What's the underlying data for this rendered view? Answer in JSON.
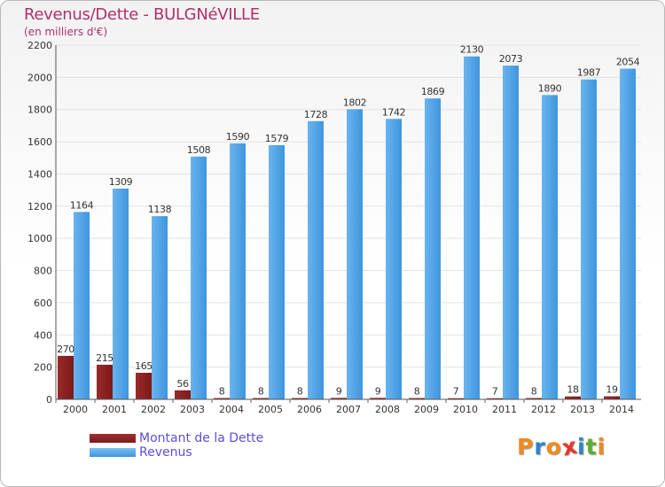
{
  "title": "Revenus/Dette - BULGNéVILLE",
  "subtitle": "(en milliers d'€)",
  "colors": {
    "dette": "#7a1a1a",
    "revenus": "#3e95de",
    "title": "#b0306a",
    "legend_text": "#5b4fd8"
  },
  "chart_data": {
    "type": "bar",
    "title": "Revenus/Dette - BULGNéVILLE",
    "ylabel": "(en milliers d'€)",
    "xlabel": "",
    "ylim": [
      0,
      2200
    ],
    "yticks": [
      0,
      200,
      400,
      600,
      800,
      1000,
      1200,
      1400,
      1600,
      1800,
      2000,
      2200
    ],
    "grid": true,
    "legend_position": "bottom-left",
    "categories": [
      "2000",
      "2001",
      "2002",
      "2003",
      "2004",
      "2005",
      "2006",
      "2007",
      "2008",
      "2009",
      "2010",
      "2011",
      "2012",
      "2013",
      "2014"
    ],
    "series": [
      {
        "name": "Montant de la Dette",
        "values": [
          270,
          215,
          165,
          56,
          8,
          8,
          8,
          9,
          9,
          8,
          7,
          7,
          8,
          18,
          19
        ]
      },
      {
        "name": "Revenus",
        "values": [
          1164,
          1309,
          1138,
          1508,
          1590,
          1579,
          1728,
          1802,
          1742,
          1869,
          2130,
          2073,
          1890,
          1987,
          2054
        ]
      }
    ]
  },
  "legend": {
    "items": [
      {
        "label": "Montant de la Dette"
      },
      {
        "label": "Revenus"
      }
    ]
  },
  "logo": {
    "letters": [
      "P",
      "r",
      "o",
      "x",
      "i",
      "t",
      "i"
    ],
    "colors": [
      "#f08a1c",
      "#2e86c8",
      "#f08a1c",
      "#e8362a",
      "#2e86c8",
      "#5ab030",
      "#f08a1c"
    ]
  }
}
